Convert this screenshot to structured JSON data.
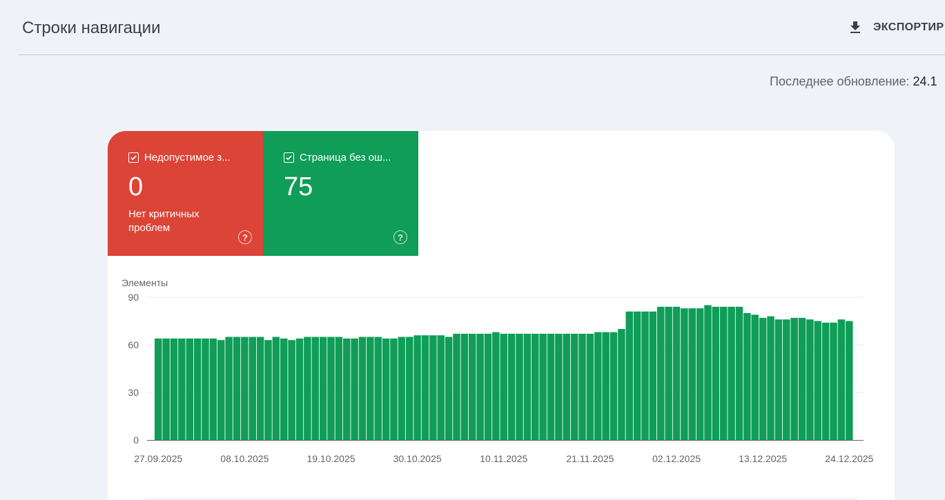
{
  "header": {
    "title": "Строки навигации",
    "export_label": "ЭКСПОРТИР"
  },
  "last_update": {
    "label": "Последнее обновление:",
    "value": "24.1"
  },
  "tiles": [
    {
      "title": "Недопустимое з...",
      "count": "0",
      "subtitle": "Нет критичных проблем",
      "color": "#db4437",
      "checked": true
    },
    {
      "title": "Страница без ош...",
      "count": "75",
      "subtitle": "",
      "color": "#0f9d58",
      "checked": true
    }
  ],
  "colors": {
    "background": "#eff3f8",
    "bar": "#0f9d58",
    "error": "#db4437",
    "valid": "#0f9d58"
  },
  "chart_data": {
    "type": "bar",
    "ylabel": "Элементы",
    "ylim": [
      0,
      90
    ],
    "yticks": [
      0,
      30,
      60,
      90
    ],
    "xtick_labels": [
      "27.09.2025",
      "08.10.2025",
      "19.10.2025",
      "30.10.2025",
      "10.11.2025",
      "21.11.2025",
      "02.12.2025",
      "13.12.2025",
      "24.12.2025"
    ],
    "start_date": "2025-09-27",
    "series": [
      {
        "name": "Страница без ошибок",
        "values": [
          64,
          64,
          64,
          64,
          64,
          64,
          64,
          64,
          63,
          65,
          65,
          65,
          65,
          65,
          63,
          65,
          64,
          63,
          64,
          65,
          65,
          65,
          65,
          65,
          64,
          64,
          65,
          65,
          65,
          64,
          64,
          65,
          65,
          66,
          66,
          66,
          66,
          65,
          67,
          67,
          67,
          67,
          67,
          68,
          67,
          67,
          67,
          67,
          67,
          67,
          67,
          67,
          67,
          67,
          67,
          67,
          68,
          68,
          68,
          70,
          81,
          81,
          81,
          81,
          84,
          84,
          84,
          83,
          83,
          83,
          85,
          84,
          84,
          84,
          84,
          80,
          79,
          77,
          78,
          76,
          76,
          77,
          77,
          76,
          75,
          74,
          74,
          76,
          75
        ]
      }
    ]
  }
}
